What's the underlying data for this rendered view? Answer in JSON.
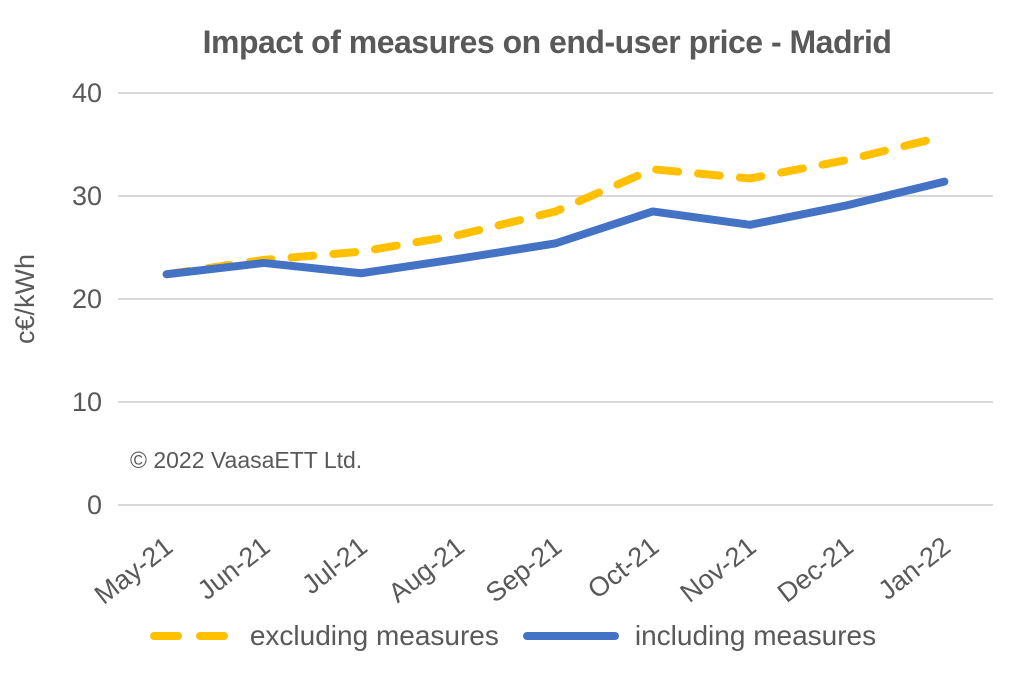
{
  "title": "Impact of measures on end-user price - Madrid",
  "annotation": "© 2022 VaasaETT Ltd.",
  "legend": {
    "items": [
      {
        "label": "excluding measures",
        "style": "dashed",
        "color": "#FFC000"
      },
      {
        "label": "including measures",
        "style": "solid",
        "color": "#4472C4"
      }
    ]
  },
  "chart_data": {
    "type": "line",
    "title": "Impact of measures on end-user price - Madrid",
    "xlabel": "",
    "ylabel": "c€/kWh",
    "categories": [
      "May-21",
      "Jun-21",
      "Jul-21",
      "Aug-21",
      "Sep-21",
      "Oct-21",
      "Nov-21",
      "Dec-21",
      "Jan-22"
    ],
    "series": [
      {
        "name": "excluding measures",
        "style": "dashed",
        "color": "#FFC000",
        "values": [
          22.4,
          23.8,
          24.6,
          26.2,
          28.5,
          32.6,
          31.7,
          33.5,
          35.8
        ]
      },
      {
        "name": "including measures",
        "style": "solid",
        "color": "#4472C4",
        "values": [
          22.4,
          23.5,
          22.5,
          23.9,
          25.4,
          28.5,
          27.2,
          29.1,
          31.4
        ]
      }
    ],
    "ylim": [
      0,
      40
    ],
    "yticks": [
      0,
      10,
      20,
      30,
      40
    ],
    "grid": true,
    "grid_color": "#D9D9D9",
    "text_color": "#595959",
    "legend_position": "bottom",
    "annotation": "© 2022 VaasaETT Ltd."
  }
}
